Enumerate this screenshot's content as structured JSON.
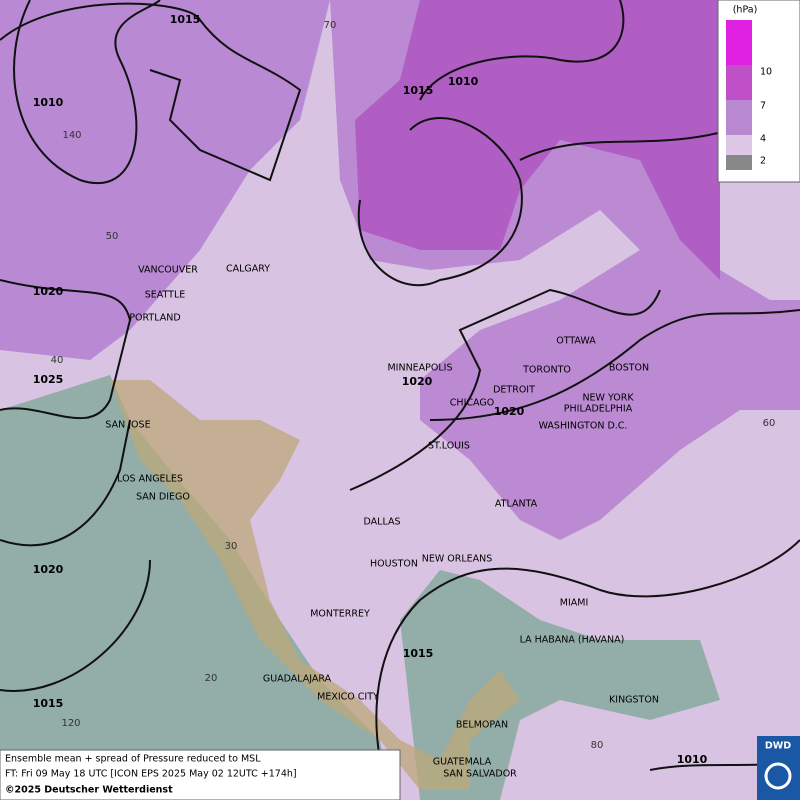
{
  "legend": {
    "unit": "(hPa)",
    "levels": [
      "10",
      "7",
      "4",
      "2"
    ]
  },
  "isobars": [
    "1015",
    "1010",
    "1020",
    "1025",
    "1015",
    "1010",
    "1020",
    "1020",
    "1020",
    "1015",
    "1015",
    "1010"
  ],
  "graticule": [
    "70",
    "140",
    "50",
    "40",
    "30",
    "20",
    "120",
    "60",
    "80"
  ],
  "cities": [
    "VANCOUVER",
    "CALGARY",
    "SEATTLE",
    "PORTLAND",
    "MINNEAPOLIS",
    "OTTAWA",
    "TORONTO",
    "BOSTON",
    "DETROIT",
    "CHICAGO",
    "NEW YORK",
    "PHILADELPHIA",
    "WASHINGTON D.C.",
    "ST.LOUIS",
    "SAN JOSE",
    "LOS ANGELES",
    "SAN DIEGO",
    "DALLAS",
    "ATLANTA",
    "HOUSTON",
    "NEW ORLEANS",
    "MIAMI",
    "MONTERREY",
    "LA HABANA (HAVANA)",
    "GUADALAJARA",
    "MEXICO CITY",
    "KINGSTON",
    "BELMOPAN",
    "GUATEMALA",
    "SAN SALVADOR"
  ],
  "footer": [
    "Ensemble mean + spread of Pressure reduced to MSL",
    "FT: Fri 09 May 18 UTC [ICON EPS 2025 May 02 12UTC +174h]",
    "©2025 Deutscher Wetterdienst"
  ],
  "logo": "DWD"
}
